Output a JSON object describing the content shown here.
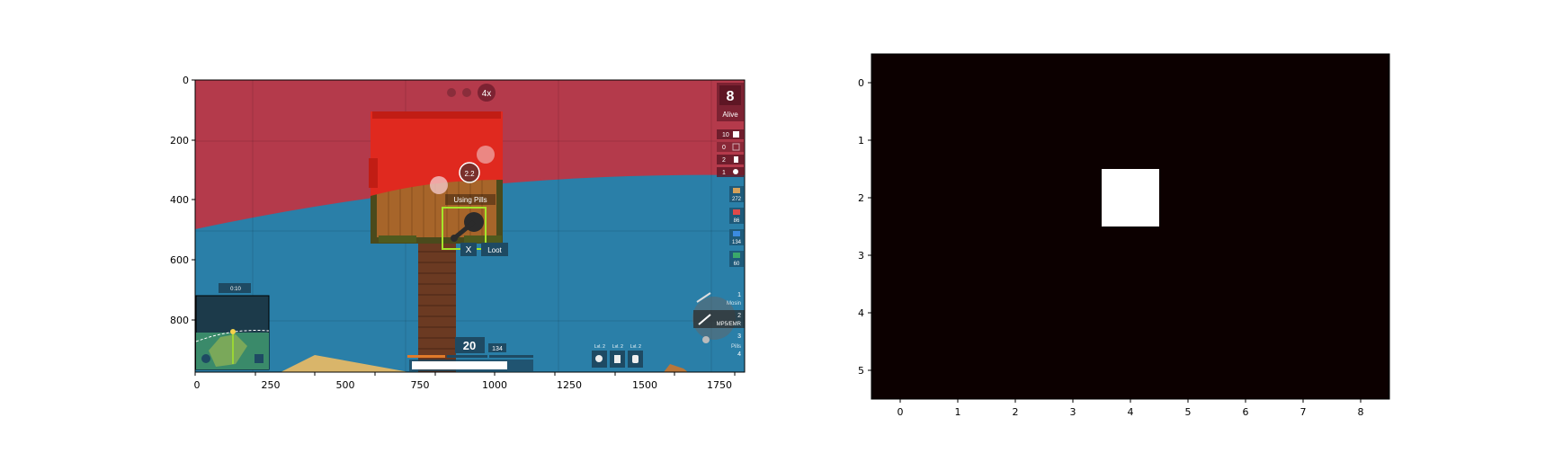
{
  "left_panel": {
    "x_ticks": [
      "0",
      "250",
      "500",
      "750",
      "1000",
      "1250",
      "1500",
      "1750"
    ],
    "y_ticks": [
      "0",
      "200",
      "400",
      "600",
      "800"
    ],
    "hud": {
      "alive_count": "8",
      "alive_label": "Alive",
      "zoom_label": "4x",
      "action_text": "Using Pills",
      "action_timer": "2.2",
      "interact_key": "X",
      "interact_label": "Loot",
      "gas_timer": "0:10",
      "ammo_loaded": "20",
      "ammo_reserve": "134",
      "inventory_counts": [
        "10",
        "0",
        "2",
        "1"
      ],
      "ammo_counts": [
        "272",
        "86",
        "134",
        "60"
      ],
      "weapon_slots": [
        "1",
        "2",
        "3",
        "4"
      ],
      "weapon_names": [
        "Mosin",
        "MP5/EMR",
        "",
        "Pills"
      ],
      "gear_levels": [
        "Lvl. 2",
        "Lvl. 2",
        "Lvl. 2"
      ],
      "colors": {
        "red_zone": "#b43a4b",
        "water": "#2a7fa8",
        "roof": "#e0291f",
        "floor": "#a7652a",
        "highlight": "#a5e62b"
      }
    }
  },
  "right_panel": {
    "x_ticks": [
      "0",
      "1",
      "2",
      "3",
      "4",
      "5",
      "6",
      "7",
      "8"
    ],
    "y_ticks": [
      "0",
      "1",
      "2",
      "3",
      "4",
      "5"
    ],
    "chart_data": {
      "type": "heatmap",
      "rows": 6,
      "cols": 9,
      "values": [
        [
          0,
          0,
          0,
          0,
          0,
          0,
          0,
          0,
          0
        ],
        [
          0,
          0,
          0,
          0,
          0,
          0,
          0,
          0,
          0
        ],
        [
          0,
          0,
          0,
          0,
          1,
          0,
          0,
          0,
          0
        ],
        [
          0,
          0,
          0,
          0,
          0,
          0,
          0,
          0,
          0
        ],
        [
          0,
          0,
          0,
          0,
          0,
          0,
          0,
          0,
          0
        ],
        [
          0,
          0,
          0,
          0,
          0,
          0,
          0,
          0,
          0
        ]
      ],
      "colors": {
        "low": "#0c0000",
        "high": "#ffffff"
      }
    }
  }
}
